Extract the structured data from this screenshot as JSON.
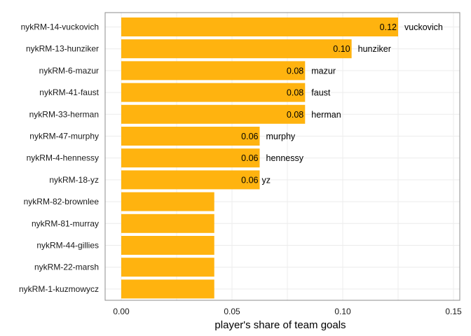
{
  "chart_data": {
    "type": "bar",
    "orientation": "horizontal",
    "title": "",
    "xlabel": "player's share of team goals",
    "ylabel": "",
    "xlim": [
      0,
      0.15
    ],
    "x_ticks": [
      {
        "value": 0.0,
        "label": "0.00"
      },
      {
        "value": 0.05,
        "label": "0.05"
      },
      {
        "value": 0.1,
        "label": "0.10"
      },
      {
        "value": 0.15,
        "label": "0.15"
      }
    ],
    "grid": true,
    "bar_color": "#FFB30F",
    "categories": [
      "nykRM-14-vuckovich",
      "nykRM-13-hunziker",
      "nykRM-6-mazur",
      "nykRM-41-faust",
      "nykRM-33-herman",
      "nykRM-47-murphy",
      "nykRM-4-hennessy",
      "nykRM-18-yz",
      "nykRM-82-brownlee",
      "nykRM-81-murray",
      "nykRM-44-gillies",
      "nykRM-22-marsh",
      "nykRM-1-kuzmowycz"
    ],
    "values": [
      0.125,
      0.104,
      0.083,
      0.083,
      0.083,
      0.0625,
      0.0625,
      0.0625,
      0.042,
      0.042,
      0.042,
      0.042,
      0.042
    ],
    "value_labels": [
      "0.12",
      "0.10",
      "0.08",
      "0.08",
      "0.08",
      "0.06",
      "0.06",
      "0.06",
      "",
      "",
      "",
      "",
      ""
    ],
    "name_labels": [
      "vuckovich",
      "hunziker",
      "mazur",
      "faust",
      "herman",
      "murphy",
      "hennessy",
      "yz",
      "",
      "",
      "",
      "",
      ""
    ]
  }
}
